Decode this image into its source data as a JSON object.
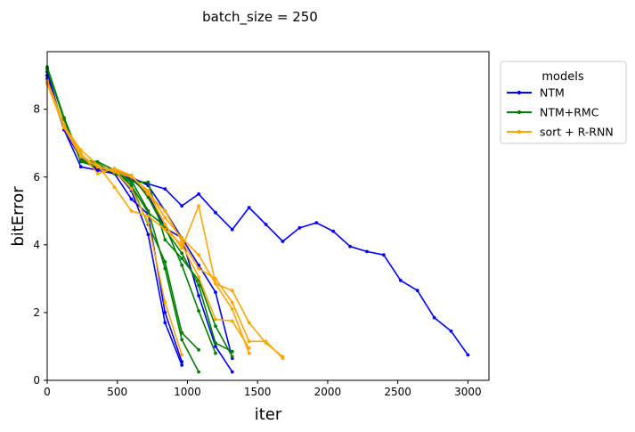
{
  "chart_data": {
    "type": "line",
    "title": "batch_size = 250",
    "xlabel": "iter",
    "ylabel": "bitError",
    "xlim": [
      0,
      3150
    ],
    "ylim": [
      0,
      9.7
    ],
    "xticks": [
      0,
      500,
      1000,
      1500,
      2000,
      2500,
      3000
    ],
    "yticks": [
      0,
      2,
      4,
      6,
      8
    ],
    "grid": false,
    "legend": {
      "title": "models",
      "placement": "outside-right-top",
      "entries": [
        "NTM",
        "NTM+RMC",
        "sort + R-RNN"
      ]
    },
    "colors": {
      "NTM": "#0000ff",
      "NTM+RMC": "#008000",
      "sort + R-RNN": "#ffa500"
    },
    "series": [
      {
        "name": "NTM",
        "runs": [
          {
            "x": [
              0,
              120,
              240,
              360,
              480,
              600,
              720,
              840,
              960
            ],
            "y": [
              9.0,
              7.4,
              6.6,
              6.25,
              6.2,
              5.6,
              4.3,
              1.7,
              0.45
            ]
          },
          {
            "x": [
              0,
              120,
              240,
              360,
              480,
              600,
              720,
              840,
              960,
              1080,
              1200,
              1320
            ],
            "y": [
              8.9,
              7.4,
              6.65,
              6.3,
              6.1,
              5.95,
              5.5,
              4.5,
              4.2,
              3.4,
              2.6,
              0.65
            ]
          },
          {
            "x": [
              0,
              120,
              240,
              360,
              480,
              600,
              720,
              840,
              960,
              1080,
              1200,
              1320
            ],
            "y": [
              9.1,
              7.4,
              6.6,
              6.25,
              6.2,
              6.0,
              5.75,
              5.0,
              4.2,
              2.5,
              1.0,
              0.25
            ]
          },
          {
            "x": [
              0,
              120,
              240,
              360,
              480,
              600,
              720,
              840,
              960
            ],
            "y": [
              8.9,
              7.4,
              6.3,
              6.2,
              6.1,
              5.35,
              4.9,
              2.0,
              0.55
            ]
          },
          {
            "x": [
              0,
              120,
              240,
              360,
              480,
              600,
              720,
              840,
              960,
              1080,
              1200,
              1320,
              1440,
              1560,
              1680,
              1800,
              1920,
              2040,
              2160,
              2280,
              2400,
              2520,
              2640,
              2760,
              2880,
              3000
            ],
            "y": [
              9.0,
              7.4,
              6.55,
              6.2,
              6.1,
              5.95,
              5.8,
              5.65,
              5.15,
              5.5,
              4.95,
              4.45,
              5.1,
              4.6,
              4.1,
              4.5,
              4.65,
              4.4,
              3.95,
              3.8,
              3.7,
              2.95,
              2.65,
              1.85,
              1.45,
              0.75
            ]
          }
        ]
      },
      {
        "name": "NTM+RMC",
        "runs": [
          {
            "x": [
              0,
              120,
              240,
              360,
              480,
              600,
              720,
              840,
              960,
              1080
            ],
            "y": [
              9.25,
              7.75,
              6.5,
              6.45,
              6.2,
              5.75,
              4.6,
              3.5,
              1.4,
              0.9
            ]
          },
          {
            "x": [
              0,
              120,
              240,
              360,
              480,
              600,
              720,
              840,
              960,
              1080
            ],
            "y": [
              9.2,
              7.75,
              6.5,
              6.3,
              6.15,
              5.9,
              5.0,
              3.3,
              1.2,
              0.25
            ]
          },
          {
            "x": [
              0,
              120,
              240,
              360,
              480,
              600,
              720,
              840,
              960,
              1080,
              1200
            ],
            "y": [
              9.2,
              7.7,
              6.45,
              6.3,
              6.2,
              5.75,
              4.95,
              4.55,
              3.4,
              2.05,
              0.8
            ]
          },
          {
            "x": [
              0,
              120,
              240,
              360,
              480,
              600,
              720,
              840,
              960,
              1080,
              1200,
              1320
            ],
            "y": [
              9.2,
              7.7,
              6.5,
              6.3,
              6.2,
              6.05,
              5.4,
              4.45,
              3.75,
              2.8,
              1.1,
              0.85
            ]
          },
          {
            "x": [
              0,
              120,
              240,
              360,
              480,
              600,
              720,
              840,
              960,
              1080,
              1200,
              1320
            ],
            "y": [
              9.2,
              7.7,
              6.5,
              6.4,
              6.1,
              5.85,
              5.85,
              4.15,
              3.6,
              2.95,
              1.6,
              0.7
            ]
          }
        ]
      },
      {
        "name": "sort + R-RNN",
        "runs": [
          {
            "x": [
              0,
              120,
              240,
              360,
              480,
              600,
              720,
              840,
              960
            ],
            "y": [
              8.75,
              7.45,
              6.6,
              6.3,
              6.2,
              5.65,
              4.65,
              2.3,
              0.75
            ]
          },
          {
            "x": [
              0,
              120,
              240,
              360,
              480,
              600,
              720,
              840,
              960,
              1080,
              1200,
              1320,
              1440,
              1560,
              1680
            ],
            "y": [
              8.8,
              7.5,
              6.6,
              6.3,
              6.15,
              6.0,
              5.6,
              4.8,
              4.2,
              3.7,
              2.85,
              2.65,
              1.7,
              1.1,
              0.7
            ]
          },
          {
            "x": [
              0,
              120,
              240,
              360,
              480,
              600,
              720,
              840,
              960,
              1080,
              1200,
              1320,
              1440,
              1560,
              1680
            ],
            "y": [
              8.85,
              7.55,
              6.65,
              6.3,
              6.2,
              6.05,
              5.5,
              5.0,
              4.1,
              3.3,
              3.0,
              2.3,
              1.15,
              1.15,
              0.65
            ]
          },
          {
            "x": [
              0,
              120,
              240,
              360,
              480,
              600,
              720,
              840,
              960,
              1080,
              1200,
              1320,
              1440
            ],
            "y": [
              8.8,
              7.5,
              6.7,
              6.1,
              6.25,
              6.05,
              5.55,
              4.6,
              3.9,
              5.15,
              2.85,
              2.1,
              0.8
            ]
          },
          {
            "x": [
              0,
              120,
              240,
              360,
              480,
              600,
              720,
              840,
              960,
              1080,
              1200,
              1320,
              1440
            ],
            "y": [
              8.8,
              7.5,
              6.8,
              6.35,
              5.7,
              5.0,
              4.85,
              4.45,
              4.0,
              3.05,
              1.8,
              1.75,
              0.95
            ]
          }
        ]
      }
    ]
  }
}
